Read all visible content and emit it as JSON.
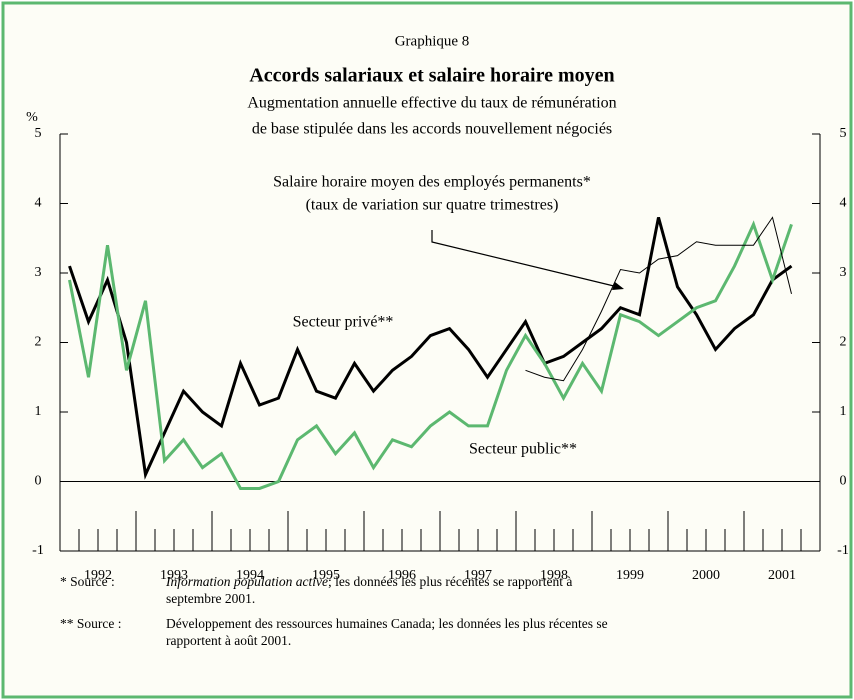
{
  "chart_data": {
    "type": "line",
    "label": "Graphique 8",
    "title": "Accords salariaux et salaire horaire moyen",
    "subtitle": [
      "Augmentation annuelle effective du taux de rémunération",
      "de base stipulée dans les accords nouvellement négociés"
    ],
    "y_unit": "%",
    "x": [
      1992.125,
      1992.375,
      1992.625,
      1992.875,
      1993.125,
      1993.375,
      1993.625,
      1993.875,
      1994.125,
      1994.375,
      1994.625,
      1994.875,
      1995.125,
      1995.375,
      1995.625,
      1995.875,
      1996.125,
      1996.375,
      1996.625,
      1996.875,
      1997.125,
      1997.375,
      1997.625,
      1997.875,
      1998.125,
      1998.375,
      1998.625,
      1998.875,
      1999.125,
      1999.375,
      1999.625,
      1999.875,
      2000.125,
      2000.375,
      2000.625,
      2000.875,
      2001.125,
      2001.375,
      2001.625
    ],
    "series": [
      {
        "name": "Secteur privé**",
        "color": "#000000",
        "width": 3,
        "values": [
          3.1,
          2.3,
          2.9,
          2.0,
          0.1,
          0.7,
          1.3,
          1.0,
          0.8,
          1.7,
          1.1,
          1.2,
          1.9,
          1.3,
          1.2,
          1.7,
          1.3,
          1.6,
          1.8,
          2.1,
          2.2,
          1.9,
          1.5,
          1.9,
          2.3,
          1.7,
          1.8,
          2.0,
          2.2,
          2.5,
          2.4,
          3.8,
          2.8,
          2.4,
          1.9,
          2.2,
          2.4,
          2.9,
          3.1
        ]
      },
      {
        "name": "Secteur public**",
        "color": "#5cb870",
        "width": 3,
        "values": [
          2.9,
          1.5,
          3.4,
          1.6,
          2.6,
          0.3,
          0.6,
          0.2,
          0.4,
          -0.1,
          -0.1,
          0.0,
          0.6,
          0.8,
          0.4,
          0.7,
          0.2,
          0.6,
          0.5,
          0.8,
          1.0,
          0.8,
          0.8,
          1.6,
          2.1,
          1.7,
          1.2,
          1.7,
          1.3,
          2.4,
          2.3,
          2.1,
          2.3,
          2.5,
          2.6,
          3.1,
          3.7,
          2.9,
          3.7
        ]
      },
      {
        "name": "Salaire horaire moyen des employés permanents*",
        "note": "(taux de variation sur quatre trimestres)",
        "color": "#000000",
        "width": 1,
        "values": [
          null,
          null,
          null,
          null,
          null,
          null,
          null,
          null,
          null,
          null,
          null,
          null,
          null,
          null,
          null,
          null,
          null,
          null,
          null,
          null,
          null,
          null,
          null,
          null,
          1.6,
          1.5,
          1.45,
          1.9,
          2.45,
          3.05,
          3.0,
          3.2,
          3.25,
          3.45,
          3.4,
          3.4,
          3.4,
          3.8,
          2.7
        ]
      }
    ],
    "xlim": [
      1992,
      2002
    ],
    "xticks": [
      {
        "value": 1992.5,
        "label": "1992"
      },
      {
        "value": 1993.5,
        "label": "1993"
      },
      {
        "value": 1994.5,
        "label": "1994"
      },
      {
        "value": 1995.5,
        "label": "1995"
      },
      {
        "value": 1996.5,
        "label": "1996"
      },
      {
        "value": 1997.5,
        "label": "1997"
      },
      {
        "value": 1998.5,
        "label": "1998"
      },
      {
        "value": 1999.5,
        "label": "1999"
      },
      {
        "value": 2000.5,
        "label": "2000"
      },
      {
        "value": 2001.5,
        "label": "2001"
      }
    ],
    "xtick_marks": [
      1992.25,
      1992.5,
      1992.75,
      1993,
      1993.25,
      1993.5,
      1993.75,
      1994,
      1994.25,
      1994.5,
      1994.75,
      1995,
      1995.25,
      1995.5,
      1995.75,
      1996,
      1996.25,
      1996.5,
      1996.75,
      1997,
      1997.25,
      1997.5,
      1997.75,
      1998,
      1998.25,
      1998.5,
      1998.75,
      1999,
      1999.25,
      1999.5,
      1999.75,
      2000,
      2000.25,
      2000.5,
      2000.75,
      2001,
      2001.25,
      2001.5,
      2001.75
    ],
    "ylim": [
      -1,
      5
    ],
    "yticks": [
      -1,
      0,
      1,
      2,
      3,
      4,
      5
    ],
    "zero_line": true,
    "footnotes": [
      {
        "marker": "* Source :",
        "italic": "Information population active",
        "text": "; les données les plus récentes se rapportent à",
        "line2": "septembre 2001."
      },
      {
        "marker": "** Source :",
        "text": "Développement des ressources humaines Canada; les données les plus récentes se",
        "line2": "rapportent à août 2001."
      }
    ]
  }
}
